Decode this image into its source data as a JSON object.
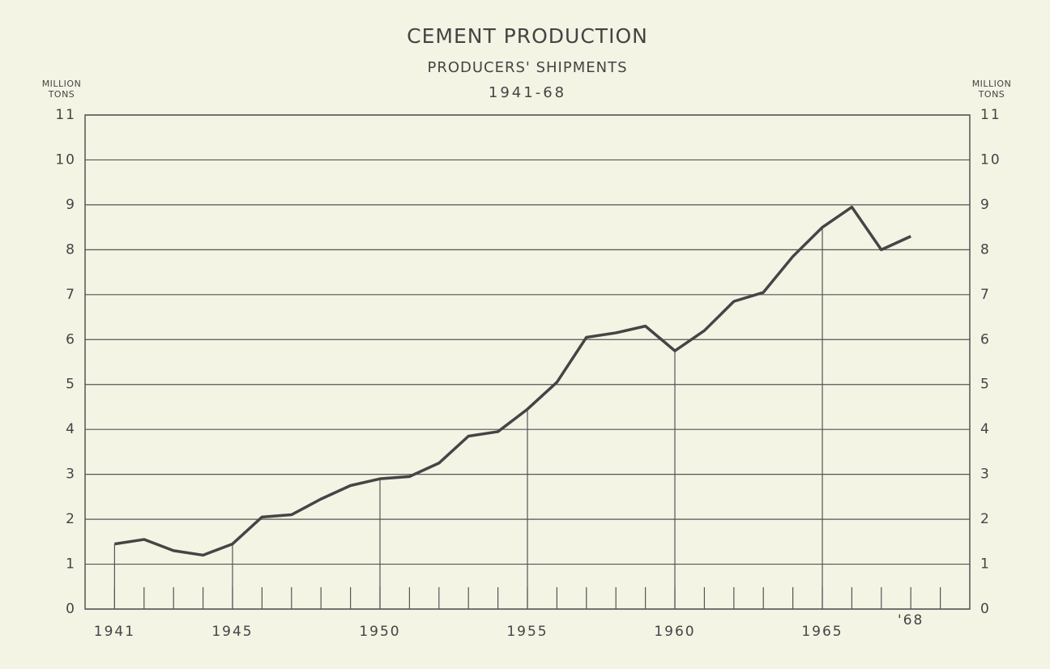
{
  "chart_data": {
    "type": "line",
    "title": "CEMENT PRODUCTION",
    "subtitle": "PRODUCERS' SHIPMENTS",
    "period": "1941-68",
    "ylabel": "MILLION TONS",
    "y2label": "MILLION TONS",
    "x": [
      1941,
      1942,
      1943,
      1944,
      1945,
      1946,
      1947,
      1948,
      1949,
      1950,
      1951,
      1952,
      1953,
      1954,
      1955,
      1956,
      1957,
      1958,
      1959,
      1960,
      1961,
      1962,
      1963,
      1964,
      1965,
      1966,
      1967,
      1968
    ],
    "series": [
      {
        "name": "Producers' shipments",
        "color": "#454545",
        "values": [
          1.45,
          1.55,
          1.3,
          1.2,
          1.45,
          2.05,
          2.1,
          2.45,
          2.75,
          2.9,
          2.95,
          3.25,
          3.85,
          3.95,
          4.45,
          5.05,
          6.05,
          6.15,
          6.3,
          5.75,
          6.2,
          6.85,
          7.05,
          7.85,
          8.5,
          8.95,
          8.0,
          8.3
        ]
      }
    ],
    "xlim": [
      1940,
      1970
    ],
    "xticks": [
      1941,
      1945,
      1950,
      1955,
      1960,
      1965,
      {
        "value": 1968,
        "label": "'68"
      }
    ],
    "xminorticks": [
      1941,
      1942,
      1943,
      1944,
      1945,
      1946,
      1947,
      1948,
      1949,
      1950,
      1951,
      1952,
      1953,
      1954,
      1955,
      1956,
      1957,
      1958,
      1959,
      1960,
      1961,
      1962,
      1963,
      1964,
      1965,
      1966,
      1967,
      1968,
      1969
    ],
    "droplines": [
      1941,
      1945,
      1950,
      1955,
      1960,
      1965
    ],
    "ylim": [
      0,
      11
    ],
    "yticks": [
      0,
      1,
      2,
      3,
      4,
      5,
      6,
      7,
      8,
      9,
      10,
      11
    ],
    "y2lim": [
      0,
      11
    ],
    "y2ticks": [
      0,
      1,
      2,
      3,
      4,
      5,
      6,
      7,
      8,
      9,
      10,
      11
    ],
    "grid": true
  }
}
